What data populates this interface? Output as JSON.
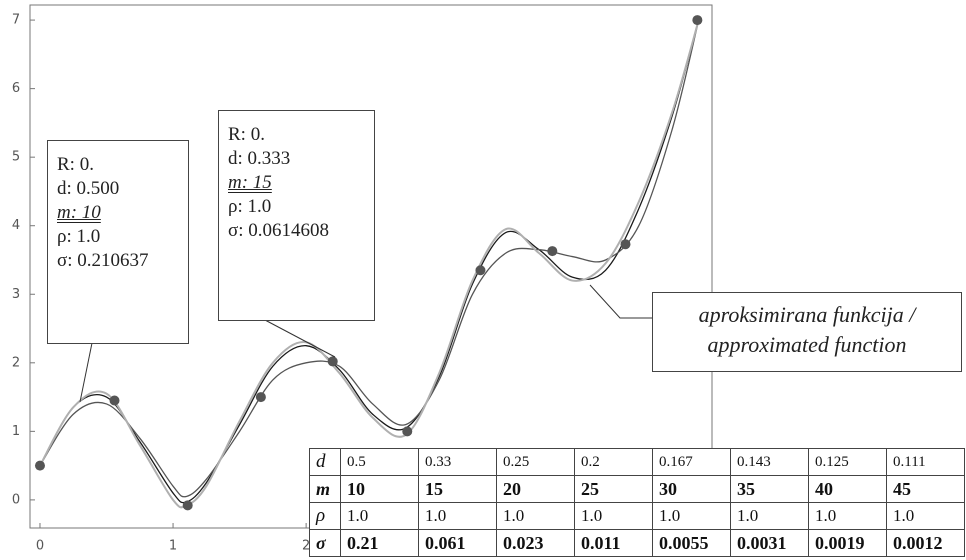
{
  "chart_data": {
    "type": "line",
    "x": [
      0,
      0.25,
      0.5,
      0.75,
      1,
      1.1,
      1.25,
      1.5,
      1.75,
      2,
      2.25,
      2.5,
      2.75,
      3,
      3.25,
      3.5,
      3.75,
      4,
      4.25,
      4.5,
      4.75,
      4.95
    ],
    "series": [
      {
        "color": "#1a1a1a",
        "values": [
          0.5,
          1.35,
          1.5,
          0.85,
          0.1,
          -0.03,
          0.25,
          1.1,
          1.95,
          2.25,
          1.9,
          1.25,
          1.05,
          1.8,
          3.15,
          3.9,
          3.65,
          3.25,
          3.35,
          4.25,
          5.6,
          7.0
        ]
      },
      {
        "color": "#555555",
        "values": [
          0.5,
          1.25,
          1.4,
          0.9,
          0.2,
          0.05,
          0.3,
          1.0,
          1.75,
          2.0,
          1.95,
          1.4,
          1.1,
          1.75,
          3.0,
          3.6,
          3.65,
          3.55,
          3.5,
          4.0,
          5.4,
          7.0
        ]
      },
      {
        "color": "#b0b0b0",
        "values": [
          0.5,
          1.35,
          1.55,
          0.8,
          0.0,
          -0.08,
          0.2,
          1.15,
          2.0,
          2.3,
          1.85,
          1.2,
          0.95,
          1.85,
          3.2,
          3.95,
          3.6,
          3.2,
          3.45,
          4.35,
          5.65,
          7.0
        ]
      }
    ],
    "points": {
      "color": "#555555",
      "x": [
        0,
        0.56,
        1.11,
        1.66,
        2.2,
        2.76,
        3.31,
        3.85,
        4.4,
        4.94
      ],
      "y": [
        0.5,
        1.45,
        -0.08,
        1.5,
        2.02,
        1.0,
        3.35,
        3.63,
        3.73,
        7.0
      ]
    },
    "xlim": [
      -0.075,
      5.05
    ],
    "ylim": [
      -0.41,
      7.22
    ],
    "xticks": [
      0,
      1,
      2
    ],
    "yticks": [
      0,
      1,
      2,
      3,
      4,
      5,
      6,
      7
    ]
  },
  "annotations": [
    [
      "R: 0.",
      "d: 0.500",
      "m: 10",
      "ρ: 1.0",
      "σ: 0.210637"
    ],
    [
      "R: 0.",
      "d: 0.333",
      "m: 15",
      "ρ: 1.0",
      "σ: 0.0614608"
    ]
  ],
  "callout": [
    "aproksimirana funkcija /",
    "approximated function"
  ],
  "table": {
    "rows": [
      [
        "d",
        "0.5",
        "0.33",
        "0.25",
        "0.2",
        "0.167",
        "0.143",
        "0.125",
        "0.111"
      ],
      [
        "m",
        "10",
        "15",
        "20",
        "25",
        "30",
        "35",
        "40",
        "45"
      ],
      [
        "ρ",
        "1.0",
        "1.0",
        "1.0",
        "1.0",
        "1.0",
        "1.0",
        "1.0",
        "1.0"
      ],
      [
        "σ",
        "0.21",
        "0.061",
        "0.023",
        "0.011",
        "0.0055",
        "0.0031",
        "0.0019",
        "0.0012"
      ]
    ]
  }
}
